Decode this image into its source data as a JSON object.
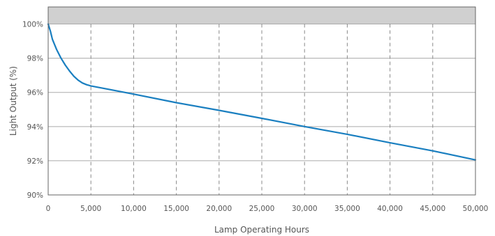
{
  "chart_data": {
    "type": "line",
    "title": "",
    "xlabel": "Lamp Operating Hours",
    "ylabel": "Light Output (%)",
    "xlim": [
      0,
      50000
    ],
    "ylim": [
      90,
      101
    ],
    "x_ticks": [
      0,
      5000,
      10000,
      15000,
      20000,
      25000,
      30000,
      35000,
      40000,
      45000,
      50000
    ],
    "x_tick_labels": [
      "0",
      "5,000",
      "10,000",
      "15,000",
      "20,000",
      "25,000",
      "30,000",
      "35,000",
      "40,000",
      "45,000",
      "50,000"
    ],
    "y_ticks": [
      90,
      92,
      94,
      96,
      98,
      100
    ],
    "y_tick_labels": [
      "90%",
      "92%",
      "94%",
      "96%",
      "98%",
      "100%"
    ],
    "grid": {
      "horizontal": "solid",
      "vertical": "dashed"
    },
    "shaded_band": [
      100,
      101
    ],
    "colors": {
      "line": "#1a7fc0",
      "grid": "#aaaaaa",
      "band": "#d0d0d0",
      "text": "#555555"
    },
    "series": [
      {
        "x": [
          0,
          250,
          500,
          1000,
          1500,
          2000,
          2500,
          3000,
          3500,
          4000,
          4500,
          5000,
          10000,
          15000,
          20000,
          25000,
          30000,
          35000,
          40000,
          45000,
          50000
        ],
        "values": [
          100.0,
          99.6,
          99.1,
          98.5,
          98.0,
          97.6,
          97.25,
          96.95,
          96.72,
          96.55,
          96.45,
          96.38,
          95.9,
          95.4,
          94.95,
          94.48,
          94.0,
          93.55,
          93.05,
          92.58,
          92.05
        ]
      }
    ]
  }
}
